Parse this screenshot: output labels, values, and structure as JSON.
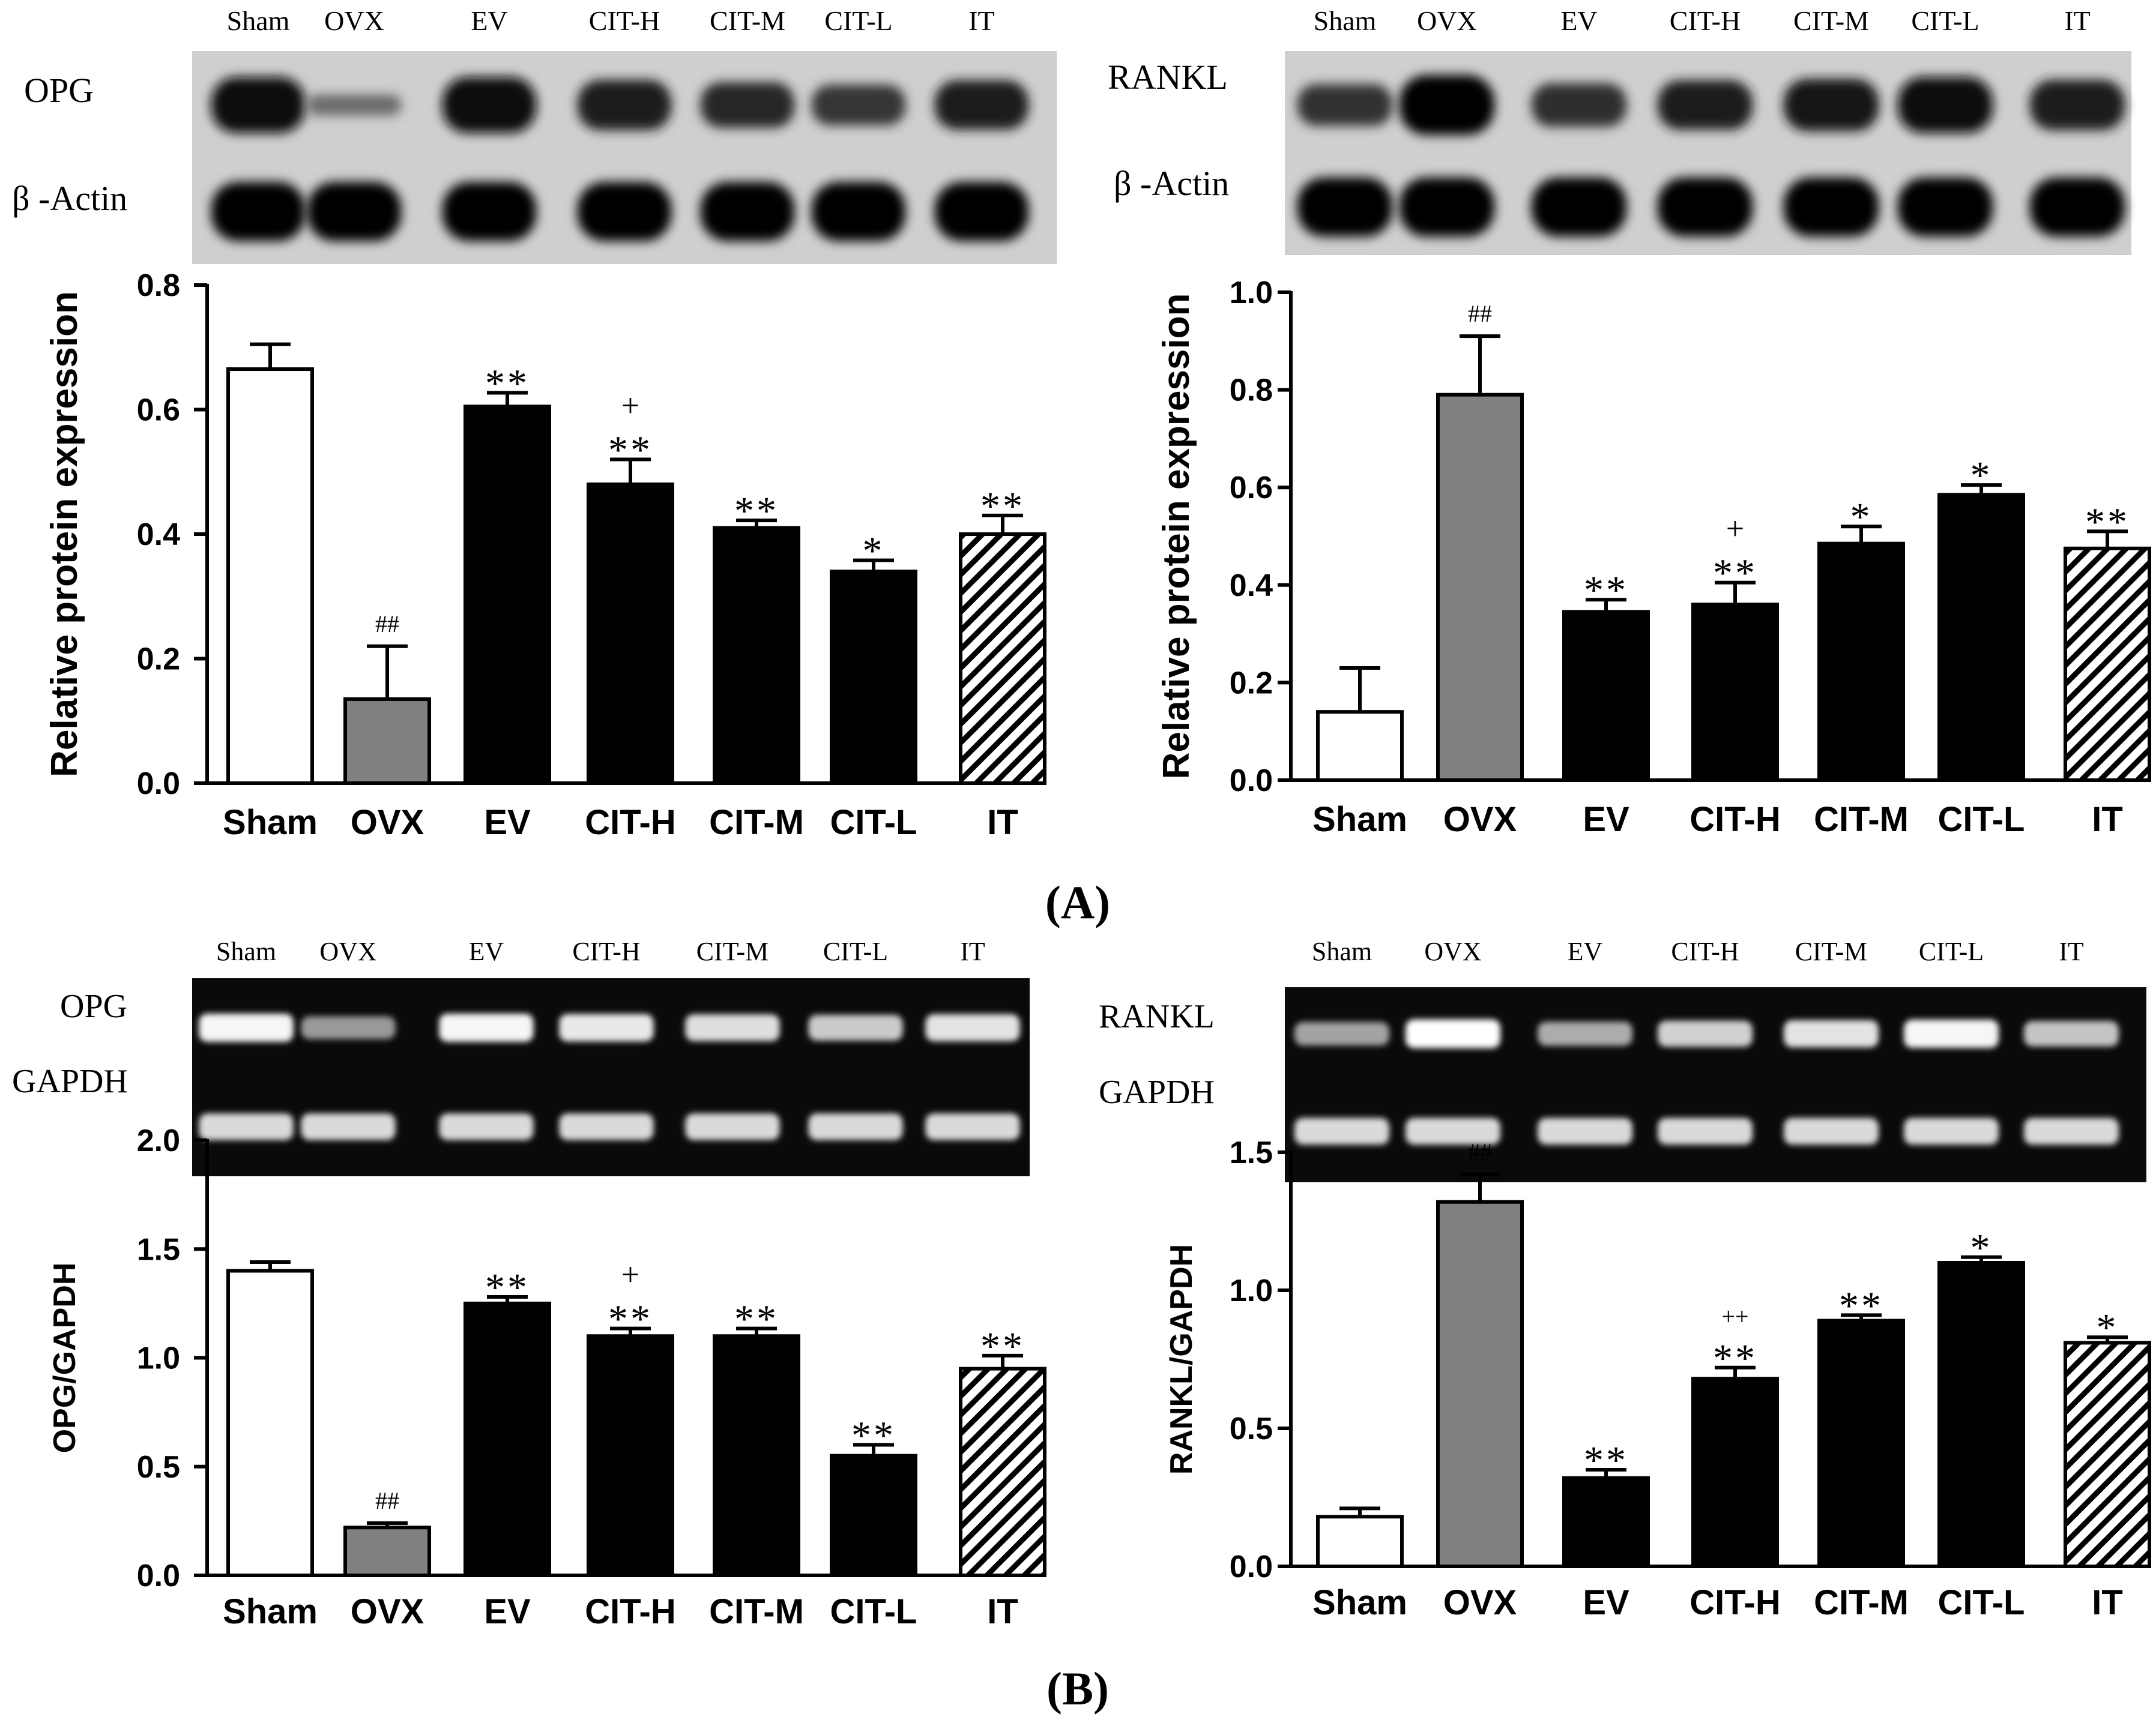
{
  "figure": {
    "panel_labels": [
      "(A)",
      "(B)"
    ]
  },
  "blots": [
    {
      "id": "wb-opg",
      "kind": "western",
      "lanes": [
        "Sham",
        "OVX",
        "EV",
        "CIT-H",
        "CIT-M",
        "CIT-L",
        "IT"
      ],
      "row_labels": [
        "OPG",
        "β -Actin"
      ],
      "band_intensity": [
        [
          0.92,
          0.18,
          0.92,
          0.8,
          0.7,
          0.6,
          0.78
        ],
        [
          0.98,
          0.98,
          0.98,
          0.98,
          0.98,
          0.98,
          0.98
        ]
      ]
    },
    {
      "id": "wb-rankl",
      "kind": "western",
      "lanes": [
        "Sham",
        "OVX",
        "EV",
        "CIT-H",
        "CIT-M",
        "CIT-L",
        "IT"
      ],
      "row_labels": [
        "RANKL",
        "β -Actin"
      ],
      "band_intensity": [
        [
          0.62,
          1.0,
          0.66,
          0.78,
          0.84,
          0.92,
          0.8
        ],
        [
          0.98,
          0.98,
          0.98,
          0.98,
          0.98,
          0.98,
          0.98
        ]
      ]
    },
    {
      "id": "gel-opg",
      "kind": "gel",
      "lanes": [
        "Sham",
        "OVX",
        "EV",
        "CIT-H",
        "CIT-M",
        "CIT-L",
        "IT"
      ],
      "row_labels": [
        "OPG",
        "GAPDH"
      ],
      "band_intensity": [
        [
          0.95,
          0.45,
          0.95,
          0.88,
          0.82,
          0.72,
          0.85
        ],
        [
          0.8,
          0.8,
          0.8,
          0.8,
          0.8,
          0.8,
          0.8
        ]
      ]
    },
    {
      "id": "gel-rankl",
      "kind": "gel",
      "lanes": [
        "Sham",
        "OVX",
        "EV",
        "CIT-H",
        "CIT-M",
        "CIT-L",
        "IT"
      ],
      "row_labels": [
        "RANKL",
        "GAPDH"
      ],
      "band_intensity": [
        [
          0.5,
          1.0,
          0.55,
          0.75,
          0.85,
          0.95,
          0.68
        ],
        [
          0.8,
          0.8,
          0.8,
          0.8,
          0.8,
          0.8,
          0.8
        ]
      ]
    }
  ],
  "chart_data": [
    {
      "type": "bar",
      "panel": "A",
      "categories": [
        "Sham",
        "OVX",
        "EV",
        "CIT-H",
        "CIT-M",
        "CIT-L",
        "IT"
      ],
      "values": [
        0.665,
        0.135,
        0.605,
        0.48,
        0.41,
        0.34,
        0.4
      ],
      "errors": [
        0.04,
        0.085,
        0.022,
        0.04,
        0.012,
        0.018,
        0.03
      ],
      "annotations": [
        "",
        "##",
        "**",
        "+\n**",
        "**",
        "*",
        "**"
      ],
      "fills": [
        "white",
        "gray",
        "black",
        "black",
        "black",
        "black",
        "hatch"
      ],
      "title": "",
      "xlabel": "",
      "ylabel": "Relative protein expression",
      "ylim": [
        0,
        0.8
      ],
      "yticks": [
        "0.0",
        "0.2",
        "0.4",
        "0.6",
        "0.8"
      ],
      "grid": false
    },
    {
      "type": "bar",
      "panel": "A",
      "categories": [
        "Sham",
        "OVX",
        "EV",
        "CIT-H",
        "CIT-M",
        "CIT-L",
        "IT"
      ],
      "values": [
        0.14,
        0.79,
        0.345,
        0.36,
        0.485,
        0.585,
        0.475
      ],
      "errors": [
        0.09,
        0.12,
        0.025,
        0.045,
        0.035,
        0.02,
        0.035
      ],
      "annotations": [
        "",
        "##",
        "**",
        "+\n**",
        "*",
        "*",
        "**"
      ],
      "fills": [
        "white",
        "gray",
        "black",
        "black",
        "black",
        "black",
        "hatch"
      ],
      "title": "",
      "xlabel": "",
      "ylabel": "Relative protein expression",
      "ylim": [
        0,
        1.0
      ],
      "yticks": [
        "0.0",
        "0.2",
        "0.4",
        "0.6",
        "0.8",
        "1.0"
      ],
      "grid": false
    },
    {
      "type": "bar",
      "panel": "B",
      "categories": [
        "Sham",
        "OVX",
        "EV",
        "CIT-H",
        "CIT-M",
        "CIT-L",
        "IT"
      ],
      "values": [
        1.4,
        0.22,
        1.25,
        1.1,
        1.1,
        0.55,
        0.95
      ],
      "errors": [
        0.04,
        0.02,
        0.03,
        0.035,
        0.035,
        0.05,
        0.06
      ],
      "annotations": [
        "",
        "##",
        "**",
        "+\n**",
        "**",
        "**",
        "**"
      ],
      "fills": [
        "white",
        "gray",
        "black",
        "black",
        "black",
        "black",
        "hatch"
      ],
      "title": "",
      "xlabel": "",
      "ylabel": "OPG/GAPDH",
      "ylim": [
        0,
        2.0
      ],
      "yticks": [
        "0.0",
        "0.5",
        "1.0",
        "1.5",
        "2.0"
      ],
      "grid": false
    },
    {
      "type": "bar",
      "panel": "B",
      "categories": [
        "Sham",
        "OVX",
        "EV",
        "CIT-H",
        "CIT-M",
        "CIT-L",
        "IT"
      ],
      "values": [
        0.18,
        1.32,
        0.32,
        0.68,
        0.89,
        1.1,
        0.81
      ],
      "errors": [
        0.03,
        0.1,
        0.03,
        0.04,
        0.02,
        0.02,
        0.02
      ],
      "annotations": [
        "",
        "##",
        "**",
        "++\n**",
        "**",
        "*",
        "*"
      ],
      "fills": [
        "white",
        "gray",
        "black",
        "black",
        "black",
        "black",
        "hatch"
      ],
      "title": "",
      "xlabel": "",
      "ylabel": "RANKL/GAPDH",
      "ylim": [
        0,
        1.5
      ],
      "yticks": [
        "0.0",
        "0.5",
        "1.0",
        "1.5"
      ],
      "grid": false
    }
  ]
}
